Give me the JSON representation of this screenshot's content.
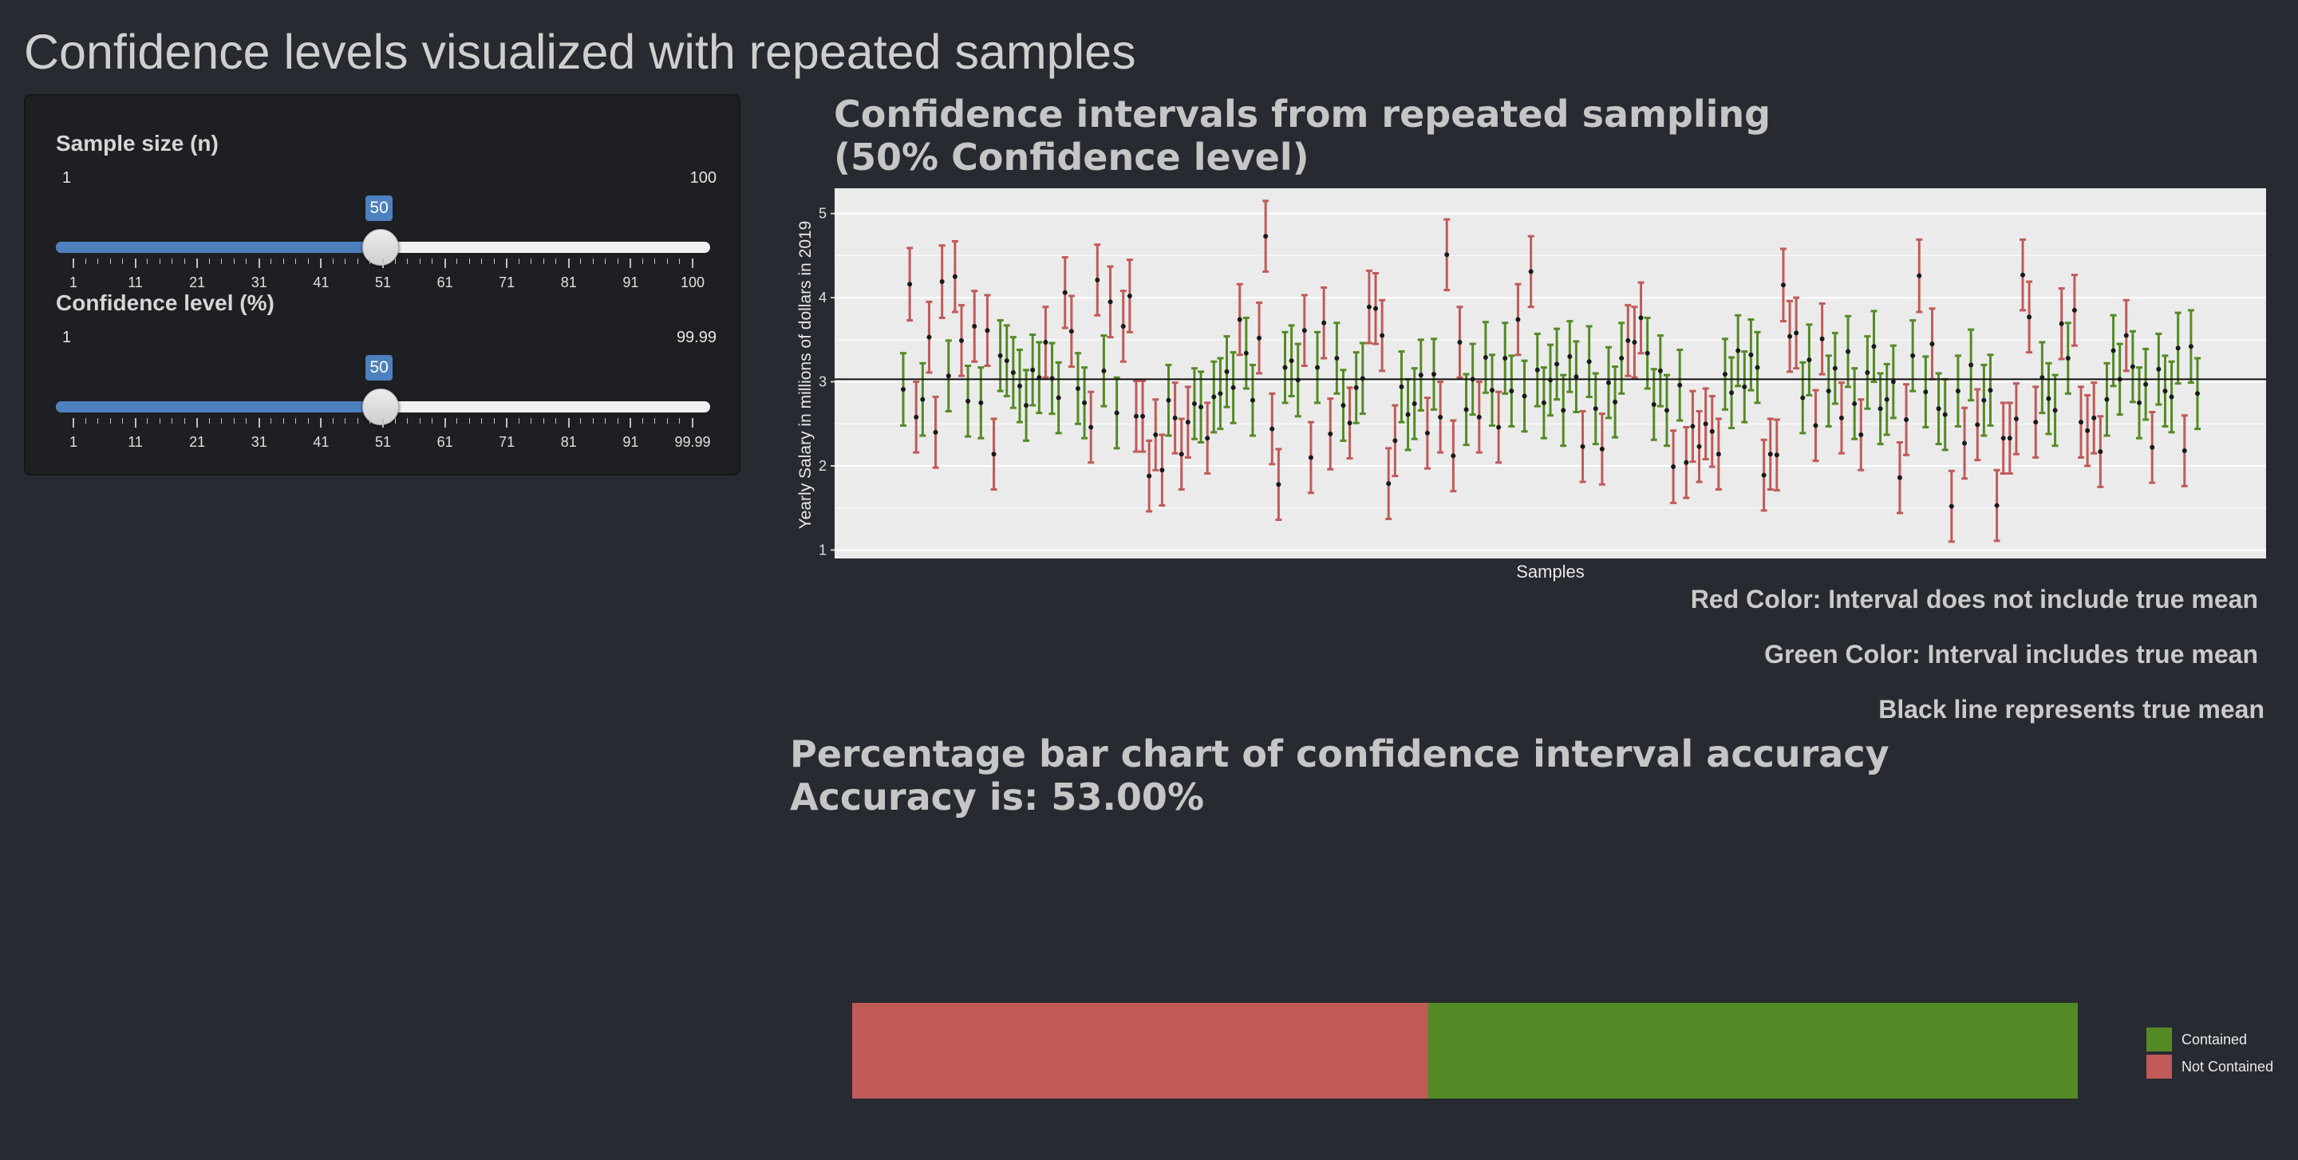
{
  "app": {
    "title": "Confidence levels visualized with repeated samples"
  },
  "sidebar": {
    "sample_size": {
      "label": "Sample size (n)",
      "min": "1",
      "max": "100",
      "value": "50",
      "fraction": 0.495,
      "tick_labels": [
        "1",
        "11",
        "21",
        "31",
        "41",
        "51",
        "61",
        "71",
        "81",
        "91",
        "100"
      ]
    },
    "confidence": {
      "label": "Confidence level (%)",
      "min": "1",
      "max": "99.99",
      "value": "50",
      "fraction": 0.495,
      "tick_labels": [
        "1",
        "11",
        "21",
        "31",
        "41",
        "51",
        "61",
        "71",
        "81",
        "91",
        "99.99"
      ]
    }
  },
  "ci_plot": {
    "title_line1": "Confidence intervals from repeated sampling",
    "title_line2": "(50% Confidence level)",
    "ylabel": "Yearly Salary in millions of dollars in 2019",
    "xlabel": "Samples",
    "notes": {
      "red": "Red Color: Interval does not include true mean",
      "green": "Green Color: Interval includes true mean",
      "black": "Black line represents true mean"
    }
  },
  "bar_chart": {
    "title_line1": "Percentage bar chart of confidence interval accuracy",
    "title_line2": "Accuracy is: 53.00%",
    "legend": {
      "contained": "Contained",
      "not_contained": "Not Contained"
    }
  },
  "colors": {
    "contained": "#548a26",
    "not_contained": "#c05b58",
    "slider": "#4d80be",
    "panel_bg": "#ebebeb"
  },
  "chart_data": [
    {
      "type": "scatter",
      "title": "Confidence intervals from repeated sampling\n(50% Confidence level)",
      "xlabel": "Samples",
      "ylabel": "Yearly Salary in millions of dollars in 2019",
      "ylim": [
        0.9,
        5.3
      ],
      "y_ticks": [
        1,
        2,
        3,
        4,
        5
      ],
      "true_mean": 3.03,
      "grid": true,
      "intervals": [
        [
          1,
          2.91,
          0.43
        ],
        [
          2,
          4.16,
          0.43
        ],
        [
          3,
          2.58,
          0.42
        ],
        [
          4,
          2.79,
          0.43
        ],
        [
          5,
          3.53,
          0.42
        ],
        [
          6,
          2.4,
          0.42
        ],
        [
          7,
          4.19,
          0.43
        ],
        [
          8,
          3.07,
          0.42
        ],
        [
          9,
          4.25,
          0.42
        ],
        [
          10,
          3.49,
          0.42
        ],
        [
          11,
          2.77,
          0.42
        ],
        [
          12,
          3.66,
          0.42
        ],
        [
          13,
          2.75,
          0.42
        ],
        [
          14,
          3.61,
          0.42
        ],
        [
          15,
          2.14,
          0.42
        ],
        [
          16,
          3.31,
          0.42
        ],
        [
          17,
          3.25,
          0.42
        ],
        [
          18,
          3.11,
          0.42
        ],
        [
          19,
          2.95,
          0.43
        ],
        [
          20,
          2.72,
          0.42
        ],
        [
          21,
          3.14,
          0.42
        ],
        [
          22,
          3.05,
          0.42
        ],
        [
          23,
          3.47,
          0.42
        ],
        [
          24,
          3.04,
          0.42
        ],
        [
          25,
          2.81,
          0.42
        ],
        [
          26,
          4.06,
          0.42
        ],
        [
          27,
          3.6,
          0.42
        ],
        [
          28,
          2.92,
          0.42
        ],
        [
          29,
          2.75,
          0.42
        ],
        [
          30,
          2.46,
          0.42
        ],
        [
          31,
          4.21,
          0.42
        ],
        [
          32,
          3.13,
          0.42
        ],
        [
          33,
          3.95,
          0.42
        ],
        [
          34,
          2.63,
          0.42
        ],
        [
          35,
          3.66,
          0.42
        ],
        [
          36,
          4.02,
          0.43
        ],
        [
          37,
          2.59,
          0.42
        ],
        [
          38,
          2.59,
          0.42
        ],
        [
          39,
          1.88,
          0.42
        ],
        [
          40,
          2.37,
          0.42
        ],
        [
          41,
          1.95,
          0.42
        ],
        [
          42,
          2.78,
          0.42
        ],
        [
          43,
          2.57,
          0.42
        ],
        [
          44,
          2.14,
          0.42
        ],
        [
          45,
          2.52,
          0.42
        ],
        [
          46,
          2.74,
          0.42
        ],
        [
          47,
          2.7,
          0.42
        ],
        [
          48,
          2.33,
          0.42
        ],
        [
          49,
          2.82,
          0.42
        ],
        [
          50,
          2.86,
          0.42
        ],
        [
          51,
          3.12,
          0.42
        ],
        [
          52,
          2.93,
          0.42
        ],
        [
          53,
          3.74,
          0.42
        ],
        [
          54,
          3.34,
          0.42
        ],
        [
          55,
          2.78,
          0.42
        ],
        [
          56,
          3.52,
          0.42
        ],
        [
          57,
          4.73,
          0.42
        ],
        [
          58,
          2.44,
          0.42
        ],
        [
          59,
          1.78,
          0.42
        ],
        [
          60,
          3.17,
          0.42
        ],
        [
          61,
          3.25,
          0.42
        ],
        [
          62,
          3.02,
          0.43
        ],
        [
          63,
          3.61,
          0.42
        ],
        [
          64,
          2.1,
          0.42
        ],
        [
          65,
          3.17,
          0.42
        ],
        [
          66,
          3.7,
          0.42
        ],
        [
          67,
          2.38,
          0.42
        ],
        [
          68,
          3.28,
          0.42
        ],
        [
          69,
          2.72,
          0.42
        ],
        [
          70,
          2.51,
          0.42
        ],
        [
          71,
          2.93,
          0.42
        ],
        [
          72,
          3.04,
          0.42
        ],
        [
          73,
          3.89,
          0.43
        ],
        [
          74,
          3.87,
          0.42
        ],
        [
          75,
          3.55,
          0.42
        ],
        [
          76,
          1.79,
          0.42
        ],
        [
          77,
          2.3,
          0.42
        ],
        [
          78,
          2.94,
          0.42
        ],
        [
          79,
          2.61,
          0.42
        ],
        [
          80,
          2.74,
          0.42
        ],
        [
          81,
          3.08,
          0.42
        ],
        [
          82,
          2.39,
          0.42
        ],
        [
          83,
          3.09,
          0.42
        ],
        [
          84,
          2.58,
          0.42
        ],
        [
          85,
          4.51,
          0.42
        ],
        [
          86,
          2.12,
          0.42
        ],
        [
          87,
          3.47,
          0.42
        ],
        [
          88,
          2.67,
          0.42
        ],
        [
          89,
          3.03,
          0.42
        ],
        [
          90,
          2.58,
          0.42
        ],
        [
          91,
          3.29,
          0.42
        ],
        [
          92,
          2.9,
          0.42
        ],
        [
          93,
          2.46,
          0.42
        ],
        [
          94,
          3.28,
          0.42
        ],
        [
          95,
          2.89,
          0.42
        ],
        [
          96,
          3.74,
          0.42
        ],
        [
          97,
          2.83,
          0.42
        ],
        [
          98,
          4.31,
          0.42
        ],
        [
          99,
          3.14,
          0.43
        ],
        [
          100,
          2.75,
          0.42
        ],
        [
          101,
          3.02,
          0.42
        ],
        [
          102,
          3.21,
          0.42
        ],
        [
          103,
          2.66,
          0.42
        ],
        [
          104,
          3.3,
          0.42
        ],
        [
          105,
          3.06,
          0.42
        ],
        [
          106,
          2.23,
          0.42
        ],
        [
          107,
          3.24,
          0.42
        ],
        [
          108,
          2.68,
          0.42
        ],
        [
          109,
          2.2,
          0.42
        ],
        [
          110,
          2.99,
          0.42
        ],
        [
          111,
          2.76,
          0.42
        ],
        [
          112,
          3.28,
          0.42
        ],
        [
          113,
          3.49,
          0.42
        ],
        [
          114,
          3.47,
          0.42
        ],
        [
          115,
          3.76,
          0.42
        ],
        [
          116,
          3.34,
          0.42
        ],
        [
          117,
          2.73,
          0.42
        ],
        [
          118,
          3.13,
          0.42
        ],
        [
          119,
          2.66,
          0.42
        ],
        [
          120,
          1.99,
          0.43
        ],
        [
          121,
          2.96,
          0.42
        ],
        [
          122,
          2.04,
          0.42
        ],
        [
          123,
          2.47,
          0.42
        ],
        [
          124,
          2.23,
          0.42
        ],
        [
          125,
          2.5,
          0.42
        ],
        [
          126,
          2.41,
          0.42
        ],
        [
          127,
          2.14,
          0.42
        ],
        [
          128,
          3.09,
          0.42
        ],
        [
          129,
          2.87,
          0.42
        ],
        [
          130,
          3.37,
          0.42
        ],
        [
          131,
          2.94,
          0.42
        ],
        [
          132,
          3.32,
          0.42
        ],
        [
          133,
          3.17,
          0.42
        ],
        [
          134,
          1.89,
          0.42
        ],
        [
          135,
          2.14,
          0.42
        ],
        [
          136,
          2.13,
          0.42
        ],
        [
          137,
          4.15,
          0.43
        ],
        [
          138,
          3.54,
          0.42
        ],
        [
          139,
          3.58,
          0.42
        ],
        [
          140,
          2.81,
          0.42
        ],
        [
          141,
          3.26,
          0.42
        ],
        [
          142,
          2.48,
          0.42
        ],
        [
          143,
          3.51,
          0.42
        ],
        [
          144,
          2.89,
          0.42
        ],
        [
          145,
          3.16,
          0.42
        ],
        [
          146,
          2.57,
          0.42
        ],
        [
          147,
          3.36,
          0.42
        ],
        [
          148,
          2.74,
          0.42
        ],
        [
          149,
          2.37,
          0.42
        ],
        [
          150,
          3.11,
          0.43
        ],
        [
          151,
          3.42,
          0.42
        ],
        [
          152,
          2.68,
          0.42
        ],
        [
          153,
          2.79,
          0.42
        ],
        [
          154,
          3.0,
          0.43
        ],
        [
          155,
          1.86,
          0.42
        ],
        [
          156,
          2.55,
          0.42
        ],
        [
          157,
          3.31,
          0.42
        ],
        [
          158,
          4.26,
          0.43
        ],
        [
          159,
          2.88,
          0.42
        ],
        [
          160,
          3.45,
          0.42
        ],
        [
          161,
          2.68,
          0.42
        ],
        [
          162,
          2.61,
          0.42
        ],
        [
          163,
          1.52,
          0.42
        ],
        [
          164,
          2.89,
          0.42
        ],
        [
          165,
          2.27,
          0.42
        ],
        [
          166,
          3.2,
          0.42
        ],
        [
          167,
          2.49,
          0.42
        ],
        [
          168,
          2.78,
          0.42
        ],
        [
          169,
          2.9,
          0.42
        ],
        [
          170,
          1.53,
          0.42
        ],
        [
          171,
          2.33,
          0.42
        ],
        [
          172,
          2.33,
          0.42
        ],
        [
          173,
          2.56,
          0.42
        ],
        [
          174,
          4.27,
          0.42
        ],
        [
          175,
          3.77,
          0.42
        ],
        [
          176,
          2.52,
          0.42
        ],
        [
          177,
          3.05,
          0.42
        ],
        [
          178,
          2.8,
          0.42
        ],
        [
          179,
          2.66,
          0.42
        ],
        [
          180,
          3.69,
          0.42
        ],
        [
          181,
          3.28,
          0.42
        ],
        [
          182,
          3.85,
          0.42
        ],
        [
          183,
          2.52,
          0.42
        ],
        [
          184,
          2.42,
          0.42
        ],
        [
          185,
          2.57,
          0.42
        ],
        [
          186,
          2.17,
          0.42
        ],
        [
          187,
          2.79,
          0.43
        ],
        [
          188,
          3.37,
          0.42
        ],
        [
          189,
          3.03,
          0.42
        ],
        [
          190,
          3.55,
          0.42
        ],
        [
          191,
          3.18,
          0.42
        ],
        [
          192,
          2.75,
          0.42
        ],
        [
          193,
          2.97,
          0.42
        ],
        [
          194,
          2.22,
          0.42
        ],
        [
          195,
          3.15,
          0.42
        ],
        [
          196,
          2.89,
          0.42
        ],
        [
          197,
          2.82,
          0.42
        ],
        [
          198,
          3.4,
          0.42
        ],
        [
          199,
          2.18,
          0.42
        ],
        [
          200,
          3.42,
          0.43
        ],
        [
          201,
          2.86,
          0.42
        ]
      ]
    },
    {
      "type": "bar",
      "title": "Percentage bar chart of confidence interval accuracy",
      "categories": [
        "Not Contained",
        "Contained"
      ],
      "values": [
        47,
        53
      ],
      "orientation": "horizontal-stacked"
    }
  ]
}
